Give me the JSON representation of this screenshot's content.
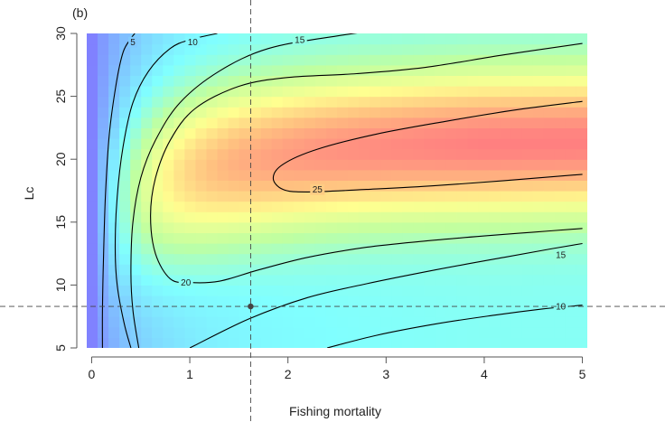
{
  "chart_data": {
    "type": "heatmap",
    "panel_label": "(b)",
    "xlabel": "Fishing mortality",
    "ylabel": "Lc",
    "xlim": [
      -0.05,
      5.05
    ],
    "ylim": [
      5,
      30
    ],
    "x_ticks": [
      0,
      1,
      2,
      3,
      4,
      5
    ],
    "y_ticks": [
      5,
      10,
      15,
      20,
      25,
      30
    ],
    "colors": {
      "scale": [
        "#8080ff",
        "#80c0ff",
        "#80ffff",
        "#c0ffa0",
        "#ffff90",
        "#ffc080",
        "#ff8080"
      ],
      "contour": "#000000",
      "reference_line": "#444444"
    },
    "surface": {
      "description_key": "yield-per-recruit surface",
      "value_range": [
        0,
        28
      ],
      "peak": {
        "F": 4.0,
        "Lc": 21.5,
        "value": 28
      }
    },
    "contours": [
      {
        "level": 5,
        "label": "5",
        "label_at": {
          "F": 0.42,
          "Lc": 29.3
        },
        "points": [
          [
            0.11,
            5
          ],
          [
            0.11,
            8
          ],
          [
            0.12,
            12
          ],
          [
            0.14,
            17
          ],
          [
            0.18,
            22
          ],
          [
            0.25,
            26
          ],
          [
            0.32,
            28.5
          ],
          [
            0.4,
            29.6
          ],
          [
            0.44,
            30
          ]
        ]
      },
      {
        "level": 10,
        "label": "10",
        "label_at": {
          "F": 1.03,
          "Lc": 29.3
        },
        "points": [
          [
            0.4,
            5
          ],
          [
            0.33,
            7
          ],
          [
            0.26,
            10
          ],
          [
            0.24,
            13
          ],
          [
            0.26,
            17
          ],
          [
            0.32,
            21
          ],
          [
            0.42,
            24.5
          ],
          [
            0.58,
            27
          ],
          [
            0.8,
            28.8
          ],
          [
            1.0,
            29.5
          ],
          [
            1.28,
            30
          ]
        ]
      },
      {
        "level": 10,
        "label": "10",
        "label_at": {
          "F": 4.78,
          "Lc": 8.3
        },
        "points": [
          [
            2.4,
            5
          ],
          [
            2.9,
            6
          ],
          [
            3.5,
            6.9
          ],
          [
            4.1,
            7.6
          ],
          [
            4.6,
            8.1
          ],
          [
            5.0,
            8.4
          ]
        ]
      },
      {
        "level": 15,
        "label": "15",
        "label_at": {
          "F": 2.12,
          "Lc": 29.5
        },
        "points": [
          [
            1.0,
            5
          ],
          [
            1.6,
            7.3
          ],
          [
            2.2,
            9
          ],
          [
            2.8,
            10.1
          ],
          [
            3.5,
            11.2
          ],
          [
            4.2,
            12.2
          ],
          [
            4.7,
            12.9
          ],
          [
            5.0,
            13.3
          ]
        ]
      },
      {
        "level": 15,
        "label": "15",
        "label_at": {
          "F": 4.78,
          "Lc": 12.4
        },
        "points": [
          [
            0.48,
            5
          ],
          [
            0.42,
            8
          ],
          [
            0.4,
            11
          ],
          [
            0.42,
            15
          ],
          [
            0.5,
            18.5
          ],
          [
            0.65,
            21.5
          ],
          [
            0.9,
            24.5
          ],
          [
            1.3,
            27
          ],
          [
            1.8,
            28.8
          ],
          [
            2.5,
            29.8
          ],
          [
            3.3,
            30.6
          ],
          [
            4.0,
            31.0
          ],
          [
            4.8,
            31.4
          ],
          [
            5.05,
            31.5
          ]
        ]
      },
      {
        "level": 20,
        "label": "20",
        "label_at": {
          "F": 0.96,
          "Lc": 10.2
        },
        "points": [
          [
            5.0,
            14.5
          ],
          [
            4.5,
            14.2
          ],
          [
            4.0,
            13.9
          ],
          [
            3.4,
            13.5
          ],
          [
            2.8,
            13.0
          ],
          [
            2.2,
            12.2
          ],
          [
            1.7,
            11.2
          ],
          [
            1.3,
            10.3
          ],
          [
            1.0,
            10.2
          ],
          [
            0.8,
            10.5
          ],
          [
            0.65,
            12.5
          ],
          [
            0.6,
            15.5
          ],
          [
            0.65,
            18.5
          ],
          [
            0.8,
            21.5
          ],
          [
            1.05,
            24
          ],
          [
            1.5,
            25.8
          ],
          [
            2.0,
            26.5
          ],
          [
            2.7,
            26.8
          ],
          [
            3.4,
            27.3
          ],
          [
            4.2,
            28.3
          ],
          [
            5.0,
            29.2
          ]
        ]
      },
      {
        "level": 25,
        "label": "25",
        "label_at": {
          "F": 2.3,
          "Lc": 17.6
        },
        "points": [
          [
            5.0,
            18.8
          ],
          [
            4.2,
            18.3
          ],
          [
            3.5,
            17.9
          ],
          [
            2.8,
            17.6
          ],
          [
            2.2,
            17.4
          ],
          [
            1.95,
            17.6
          ],
          [
            1.85,
            18.5
          ],
          [
            1.95,
            19.6
          ],
          [
            2.3,
            20.8
          ],
          [
            2.9,
            22.0
          ],
          [
            3.6,
            23.0
          ],
          [
            4.3,
            23.9
          ],
          [
            5.0,
            24.6
          ]
        ]
      }
    ],
    "reference_point": {
      "F": 1.62,
      "Lc": 8.3
    },
    "reference_lines": {
      "vertical_F": 1.62,
      "horizontal_Lc": 8.3
    }
  }
}
